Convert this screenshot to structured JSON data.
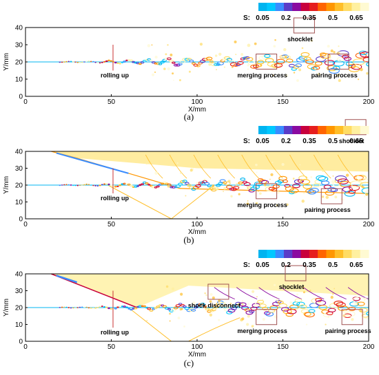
{
  "chart_data": [
    {
      "type": "heatmap",
      "caption": "(a)",
      "xlabel": "X/mm",
      "ylabel": "Y/mm",
      "xlim": [
        0,
        200
      ],
      "ylim": [
        0,
        40
      ],
      "x_ticks": [
        0,
        50,
        100,
        150,
        200
      ],
      "y_ticks": [
        0,
        10,
        20,
        30,
        40
      ],
      "colorbar": {
        "label": "S:",
        "ticks": [
          "0.05",
          "0.2",
          "0.35",
          "0.5",
          "0.65"
        ]
      },
      "annotations": [
        {
          "text": "rolling up",
          "x": 52,
          "y": 11
        },
        {
          "text": "merging process",
          "x": 138,
          "y": 11
        },
        {
          "text": "shocklet",
          "x": 160,
          "y": 32
        },
        {
          "text": "pairing process",
          "x": 180,
          "y": 11
        }
      ]
    },
    {
      "type": "heatmap",
      "caption": "(b)",
      "xlabel": "X/mm",
      "ylabel": "Y/mm",
      "xlim": [
        0,
        200
      ],
      "ylim": [
        0,
        40
      ],
      "x_ticks": [
        0,
        50,
        100,
        150,
        200
      ],
      "y_ticks": [
        0,
        10,
        20,
        30,
        40
      ],
      "colorbar": {
        "label": "S:",
        "ticks": [
          "0.05",
          "0.2",
          "0.35",
          "0.5",
          "0.65"
        ]
      },
      "annotations": [
        {
          "text": "rolling up",
          "x": 52,
          "y": 11
        },
        {
          "text": "merging process",
          "x": 138,
          "y": 7
        },
        {
          "text": "pairing process",
          "x": 176,
          "y": 4
        },
        {
          "text": "shocklet",
          "x": 190,
          "y": 45
        }
      ]
    },
    {
      "type": "heatmap",
      "caption": "(c)",
      "xlabel": "X/mm",
      "ylabel": "Y/mm",
      "xlim": [
        0,
        200
      ],
      "ylim": [
        0,
        40
      ],
      "x_ticks": [
        0,
        50,
        100,
        150,
        200
      ],
      "y_ticks": [
        0,
        10,
        20,
        30,
        40
      ],
      "colorbar": {
        "label": "S:",
        "ticks": [
          "0.05",
          "0.2",
          "0.35",
          "0.5",
          "0.65"
        ]
      },
      "annotations": [
        {
          "text": "rolling up",
          "x": 52,
          "y": 4
        },
        {
          "text": "shock disconnect",
          "x": 110,
          "y": 20
        },
        {
          "text": "merging process",
          "x": 138,
          "y": 5
        },
        {
          "text": "shocklet",
          "x": 155,
          "y": 31
        },
        {
          "text": "pairing process",
          "x": 188,
          "y": 5
        }
      ]
    }
  ],
  "colors": {
    "colormap": [
      "#00b4f0",
      "#00c8ff",
      "#3a8cff",
      "#5a3cc8",
      "#8a0aa0",
      "#c8003c",
      "#e61e1e",
      "#ff6400",
      "#ff9600",
      "#ffbe28",
      "#ffdc64",
      "#fff0a0",
      "#fffad2"
    ],
    "frame": "#000000"
  }
}
